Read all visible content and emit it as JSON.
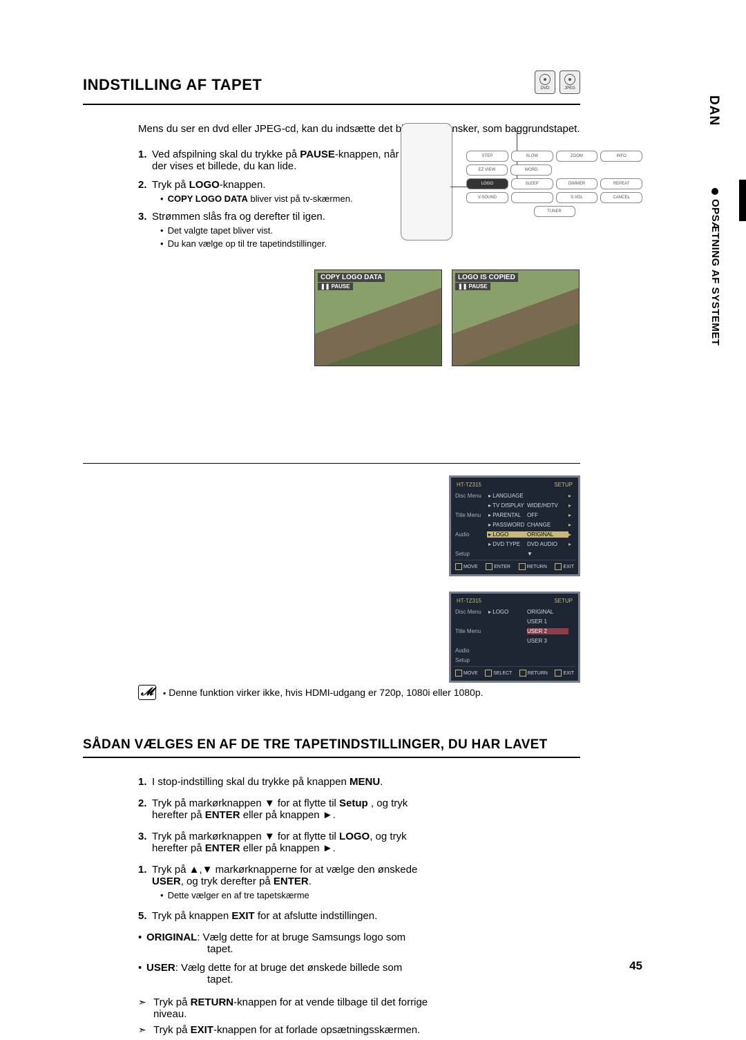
{
  "title": "INDSTILLING AF TAPET",
  "badges": {
    "dvd": "DVD",
    "jpeg": "JPEG"
  },
  "sideTab": "DAN",
  "sideLabel": "OPSÆTNING AF SYSTEMET",
  "intro": "Mens du ser en dvd eller JPEG-cd, kan du indsætte det billede, du ønsker, som baggrundstapet.",
  "steps": [
    {
      "n": "1.",
      "pre": "Ved afspilning skal du trykke på ",
      "bold": "PAUSE",
      "post": "-knappen, når der vises et billede, du kan lide."
    },
    {
      "n": "2.",
      "pre": "Tryk på ",
      "bold": "LOGO",
      "post": "-knappen.",
      "subs": [
        {
          "bold": "COPY LOGO DATA",
          "post": " bliver vist på tv-skærmen."
        }
      ]
    },
    {
      "n": "3.",
      "pre": "Strømmen slås fra og derefter til igen.",
      "subs": [
        {
          "post": "Det valgte tapet bliver vist."
        },
        {
          "post": "Du kan vælge op til tre tapetindstillinger."
        }
      ]
    }
  ],
  "remote": {
    "row1": [
      "STEP",
      "SLOW",
      "ZOOM",
      "INFO"
    ],
    "row1b": [
      "EZ VIEW",
      "WORD"
    ],
    "row2": [
      "LOGO",
      "SLEEP",
      "DIMMER",
      "REPEAT"
    ],
    "row3": [
      "V-SOUND",
      "",
      "S.VOL",
      "CANCEL"
    ],
    "row3b": [
      "TUNER"
    ]
  },
  "photos": {
    "left_top": "COPY LOGO DATA",
    "left_mid": "❚❚ PAUSE",
    "right_top": "LOGO IS COPIED",
    "right_mid": "❚❚ PAUSE"
  },
  "note": "Denne funktion virker ikke, hvis HDMI-udgang er 720p, 1080i eller 1080p.",
  "section2_title": "SÅDAN VÆLGES EN AF DE TRE TAPETINDSTILLINGER, DU HAR LAVET",
  "steps2": [
    {
      "n": "1.",
      "txt_a": "I stop-indstilling skal du trykke på knappen ",
      "b1": "MENU",
      "txt_b": "."
    },
    {
      "n": "2.",
      "txt_a": "Tryk på markørknappen ▼ for at flytte til ",
      "b1": "Setup",
      "txt_b": " , og tryk herefter på ",
      "b2": "ENTER",
      "txt_c": " eller på knappen ►."
    },
    {
      "n": "3.",
      "txt_a": "Tryk på markørknappen ▼  for at flytte til ",
      "b1": "LOGO",
      "txt_b": ", og tryk herefter på ",
      "b2": "ENTER",
      "txt_c": " eller på knappen ►."
    },
    {
      "n": "1.",
      "txt_a": "Tryk på ▲,▼ markørknapperne for at vælge den ønskede ",
      "b1": "USER",
      "txt_b": ", og tryk derefter på ",
      "b2": "ENTER",
      "txt_c": ".",
      "subs": [
        "Dette vælger en af tre tapetskærme"
      ]
    },
    {
      "n": "5.",
      "txt_a": "Tryk på knappen ",
      "b1": "EXIT",
      "txt_b": " for at afslutte indstillingen."
    }
  ],
  "bullets2": [
    {
      "b": "ORIGINAL",
      "t1": ": Vælg dette for at bruge Samsungs logo som",
      "t2": "tapet."
    },
    {
      "b": "USER",
      "t1": ": Vælg dette for at bruge det ønskede billede som",
      "t2": "tapet."
    }
  ],
  "arrows": [
    {
      "a": "Tryk på ",
      "b": "RETURN",
      "c": "-knappen for at vende tilbage til det forrige niveau."
    },
    {
      "a": "Tryk på ",
      "b": "EXIT",
      "c": "-knappen for at forlade opsætningsskærmen."
    }
  ],
  "menu1": {
    "header_l": "HT-TZ315",
    "header_r": "SETUP",
    "rows": [
      {
        "left": "Disc Menu",
        "mid": "▸ LANGUAGE",
        "right": "",
        "caret": "▸"
      },
      {
        "left": "",
        "mid": "▸ TV DISPLAY",
        "right": "WIDE/HDTV",
        "caret": "▸"
      },
      {
        "left": "Title Menu",
        "mid": "▸ PARENTAL",
        "right": "OFF",
        "caret": "▸"
      },
      {
        "left": "",
        "mid": "▸ PASSWORD",
        "right": "CHANGE",
        "caret": "▸"
      },
      {
        "left": "Audio",
        "mid": "▸ LOGO",
        "right": "ORIGINAL",
        "caret": "▸",
        "hl": true
      },
      {
        "left": "",
        "mid": "▸ DVD TYPE",
        "right": "DVD  AUDIO",
        "caret": "▸"
      },
      {
        "left": "Setup",
        "mid": "",
        "right": "▼",
        "caret": ""
      }
    ],
    "footer": [
      "MOVE",
      "ENTER",
      "RETURN",
      "EXIT"
    ]
  },
  "menu2": {
    "header_l": "HT-TZ315",
    "header_r": "SETUP",
    "rows": [
      {
        "left": "Disc Menu",
        "mid": "▸ LOGO",
        "right": "ORIGINAL"
      },
      {
        "left": "",
        "mid": "",
        "right": "USER 1"
      },
      {
        "left": "Title Menu",
        "mid": "",
        "right": "USER 2",
        "hl2": true
      },
      {
        "left": "",
        "mid": "",
        "right": "USER 3"
      },
      {
        "left": "Audio",
        "mid": "",
        "right": ""
      },
      {
        "left": "Setup",
        "mid": "",
        "right": ""
      }
    ],
    "footer": [
      "MOVE",
      "SELECT",
      "RETURN",
      "EXIT"
    ]
  },
  "pageNum": "45"
}
